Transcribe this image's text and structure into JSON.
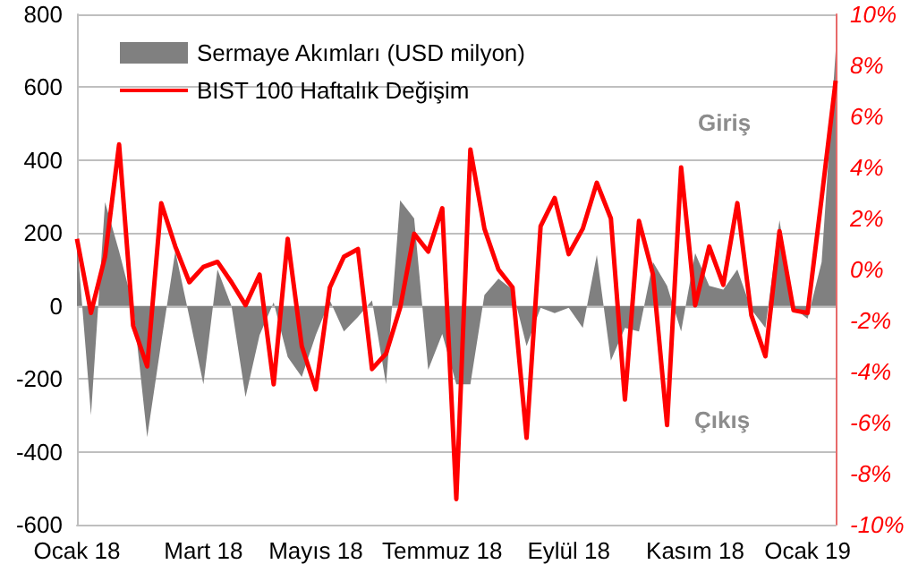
{
  "chart_data": {
    "type": "area",
    "categories": [
      "Ocak 18",
      null,
      null,
      null,
      null,
      null,
      null,
      null,
      null,
      "Mart 18",
      null,
      null,
      null,
      null,
      null,
      null,
      null,
      "Mayıs 18",
      null,
      null,
      null,
      null,
      null,
      null,
      null,
      null,
      "Temmuz 18",
      null,
      null,
      null,
      null,
      null,
      null,
      null,
      null,
      "Eylül 18",
      null,
      null,
      null,
      null,
      null,
      null,
      null,
      null,
      "Kasım 18",
      null,
      null,
      null,
      null,
      null,
      null,
      null,
      "Ocak 19",
      null,
      null
    ],
    "series": [
      {
        "name": "Sermaye Akımları (USD milyon)",
        "color": "#808080",
        "values": [
          180,
          -300,
          285,
          150,
          0,
          -360,
          -100,
          150,
          -30,
          -215,
          100,
          0,
          -250,
          -80,
          10,
          -140,
          -195,
          -80,
          15,
          -70,
          -30,
          15,
          -215,
          290,
          240,
          -175,
          -77,
          -215,
          -215,
          30,
          75,
          45,
          -110,
          -5,
          -20,
          -5,
          -60,
          140,
          -150,
          -60,
          -70,
          120,
          55,
          -70,
          145,
          55,
          45,
          100,
          -10,
          -60,
          235,
          -5,
          -35,
          120,
          700
        ]
      },
      {
        "name": "BIST 100 Haftalık Değişim",
        "type": "line",
        "axis": "y2",
        "color": "#ff0000",
        "values": [
          1.2,
          -1.7,
          0.5,
          4.9,
          -2.2,
          -3.8,
          2.6,
          0.9,
          -0.5,
          0.1,
          0.3,
          -0.5,
          -1.4,
          -0.2,
          -4.5,
          1.2,
          -3.0,
          -4.7,
          -0.7,
          0.5,
          0.8,
          -3.9,
          -3.3,
          -1.5,
          1.4,
          0.7,
          2.4,
          -9.0,
          4.7,
          1.6,
          0.0,
          -0.7,
          -6.6,
          1.7,
          2.8,
          0.6,
          1.6,
          3.4,
          2.0,
          -5.1,
          1.9,
          -0.2,
          -6.1,
          4.0,
          -1.4,
          0.9,
          -0.6,
          2.6,
          -1.8,
          -3.4,
          1.5,
          -1.6,
          -1.7,
          2.8,
          7.4
        ]
      }
    ],
    "ylim": [
      -600,
      800
    ],
    "yticks": [
      -600,
      -400,
      -200,
      0,
      200,
      400,
      600,
      800
    ],
    "y2lim": [
      -10,
      10
    ],
    "y2ticks": [
      {
        "value": -10,
        "label": "-10%"
      },
      {
        "value": -8,
        "label": "-8%"
      },
      {
        "value": -6,
        "label": "-6%"
      },
      {
        "value": -4,
        "label": "-4%"
      },
      {
        "value": -2,
        "label": "-2%"
      },
      {
        "value": 0,
        "label": "0%"
      },
      {
        "value": 2,
        "label": "2%"
      },
      {
        "value": 4,
        "label": "4%"
      },
      {
        "value": 6,
        "label": "6%"
      },
      {
        "value": 8,
        "label": "8%"
      },
      {
        "value": 10,
        "label": "10%"
      }
    ],
    "annotations": [
      "Giriş",
      "Çıkış"
    ],
    "grid": "y",
    "legend": "top left",
    "marker": "none",
    "line_style": "solid"
  }
}
